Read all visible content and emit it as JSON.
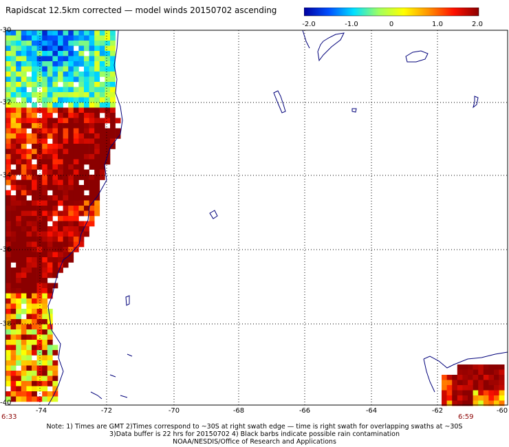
{
  "title": "Rapidscat 12.5km corrected — model winds 20150702 ascending",
  "colorbar": {
    "ticks": [
      "-2.0",
      "-1.0",
      "0",
      "1.0",
      "2.0"
    ],
    "range": [
      -2.0,
      2.0
    ],
    "colors": [
      "#0000a0",
      "#0050ff",
      "#00e0ff",
      "#a0ff60",
      "#ffff00",
      "#ff9000",
      "#ff1000",
      "#8b0000"
    ]
  },
  "map": {
    "lat_labels": [
      "-30",
      "-32",
      "-34",
      "-36",
      "-38",
      "-40"
    ],
    "lon_labels": [
      "-74",
      "-72",
      "-70",
      "-68",
      "-66",
      "-64",
      "-62",
      "-60"
    ],
    "lat_range": [
      -40,
      -30
    ],
    "lon_range": [
      -75.2,
      -60
    ],
    "grid": true,
    "coast_color": "#00007a",
    "time_start": "6:33",
    "time_end": "6:59"
  },
  "notes": [
    "Note: 1) Times are GMT 2)Times correspond to ~30S at right swath edge — time is right swath for overlapping swaths at ~30S",
    "3)Data buffer is 22 hrs for 20150702 4) Black barbs indicate possible rain contamination",
    "NOAA/NESDIS/Office of Research and Applications"
  ]
}
